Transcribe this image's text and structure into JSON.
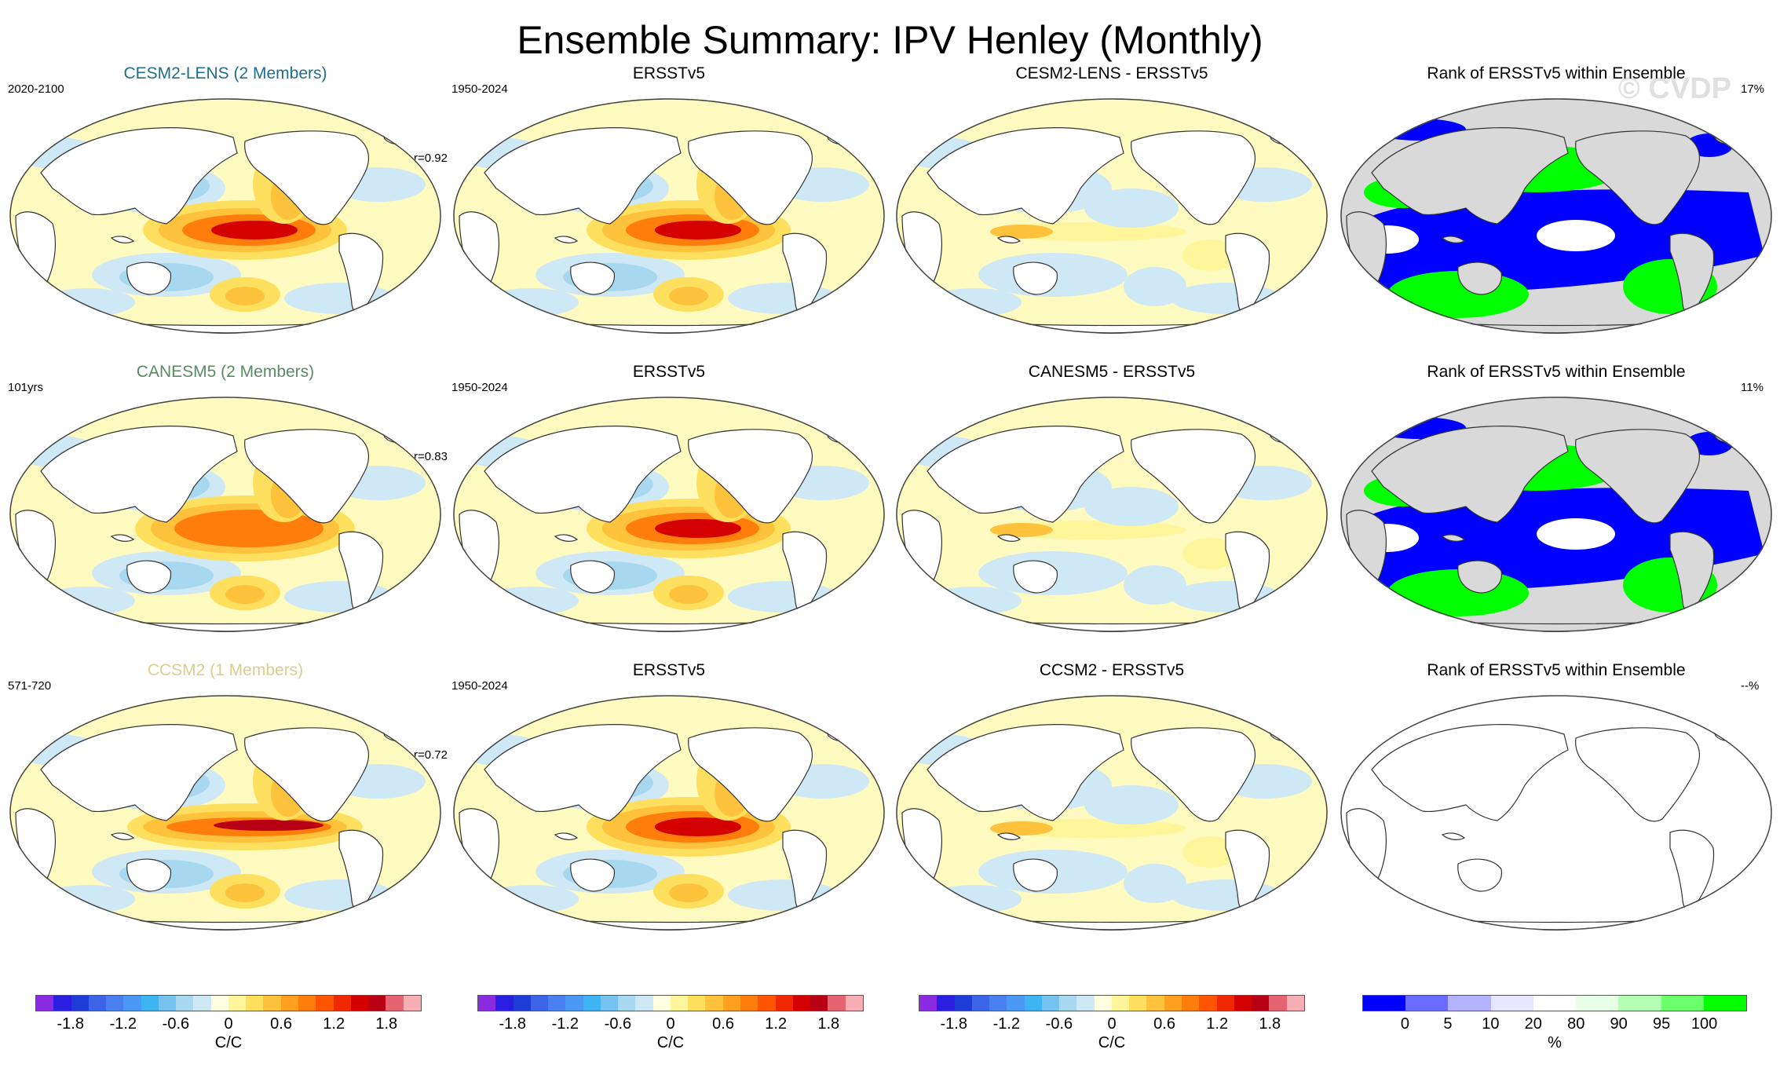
{
  "title": "Ensemble Summary: IPV Henley (Monthly)",
  "watermark": "© CVDP",
  "rows": [
    {
      "model": {
        "title": "CESM2-LENS (2 Members)",
        "title_color": "#1f6f8b",
        "years": "2020-2100",
        "r": "r=0.92",
        "pattern": "strong"
      },
      "obs": {
        "title": "ERSSTv5",
        "years": "1950-2024"
      },
      "diff": {
        "title": "CESM2-LENS - ERSSTv5"
      },
      "rank": {
        "title": "Rank of ERSSTv5 within Ensemble",
        "pct": "17%",
        "filled": true
      }
    },
    {
      "model": {
        "title": "CANESM5 (2 Members)",
        "title_color": "#5a8a64",
        "years": "101yrs",
        "r": "r=0.83",
        "pattern": "medium"
      },
      "obs": {
        "title": "ERSSTv5",
        "years": "1950-2024"
      },
      "diff": {
        "title": "CANESM5 - ERSSTv5"
      },
      "rank": {
        "title": "Rank of ERSSTv5 within Ensemble",
        "pct": "11%",
        "filled": true
      }
    },
    {
      "model": {
        "title": "CCSM2 (1 Members)",
        "title_color": "#d7cf8f",
        "years": "571-720",
        "r": "r=0.72",
        "pattern": "narrow"
      },
      "obs": {
        "title": "ERSSTv5",
        "years": "1950-2024"
      },
      "diff": {
        "title": "CCSM2 - ERSSTv5"
      },
      "rank": {
        "title": "Rank of ERSSTv5 within Ensemble",
        "pct": "--%",
        "filled": false
      }
    }
  ],
  "colorbars": [
    {
      "unit": "C/C",
      "ticks": [
        "-1.8",
        "-1.2",
        "-0.6",
        "0",
        "0.6",
        "1.2",
        "1.8"
      ],
      "colors": [
        "#8a2be2",
        "#2a1ee0",
        "#1e3cd6",
        "#3c64e6",
        "#4a7ff0",
        "#4b98f5",
        "#3fb4f2",
        "#75c2ee",
        "#a8d8f0",
        "#cfe8f5",
        "#fffee0",
        "#fff59a",
        "#ffe05e",
        "#ffc23c",
        "#ffa01e",
        "#ff7d0a",
        "#ff5500",
        "#f02800",
        "#d40000",
        "#b80014",
        "#e66472",
        "#f7aeb5"
      ]
    },
    {
      "unit": "C/C",
      "ticks": [
        "-1.8",
        "-1.2",
        "-0.6",
        "0",
        "0.6",
        "1.2",
        "1.8"
      ],
      "colors": [
        "#8a2be2",
        "#2a1ee0",
        "#1e3cd6",
        "#3c64e6",
        "#4a7ff0",
        "#4b98f5",
        "#3fb4f2",
        "#75c2ee",
        "#a8d8f0",
        "#cfe8f5",
        "#fffee0",
        "#fff59a",
        "#ffe05e",
        "#ffc23c",
        "#ffa01e",
        "#ff7d0a",
        "#ff5500",
        "#f02800",
        "#d40000",
        "#b80014",
        "#e66472",
        "#f7aeb5"
      ]
    },
    {
      "unit": "C/C",
      "ticks": [
        "-1.8",
        "-1.2",
        "-0.6",
        "0",
        "0.6",
        "1.2",
        "1.8"
      ],
      "colors": [
        "#8a2be2",
        "#2a1ee0",
        "#1e3cd6",
        "#3c64e6",
        "#4a7ff0",
        "#4b98f5",
        "#3fb4f2",
        "#75c2ee",
        "#a8d8f0",
        "#cfe8f5",
        "#fffee0",
        "#fff59a",
        "#ffe05e",
        "#ffc23c",
        "#ffa01e",
        "#ff7d0a",
        "#ff5500",
        "#f02800",
        "#d40000",
        "#b80014",
        "#e66472",
        "#f7aeb5"
      ]
    },
    {
      "unit": "%",
      "ticks": [
        "0",
        "5",
        "10",
        "20",
        "80",
        "90",
        "95",
        "100"
      ],
      "colors": [
        "#0000ff",
        "#6b6bff",
        "#b3b3ff",
        "#e6e6ff",
        "#ffffff",
        "#e6ffe6",
        "#b3ffb3",
        "#6bff6b",
        "#00ff00"
      ]
    }
  ]
}
